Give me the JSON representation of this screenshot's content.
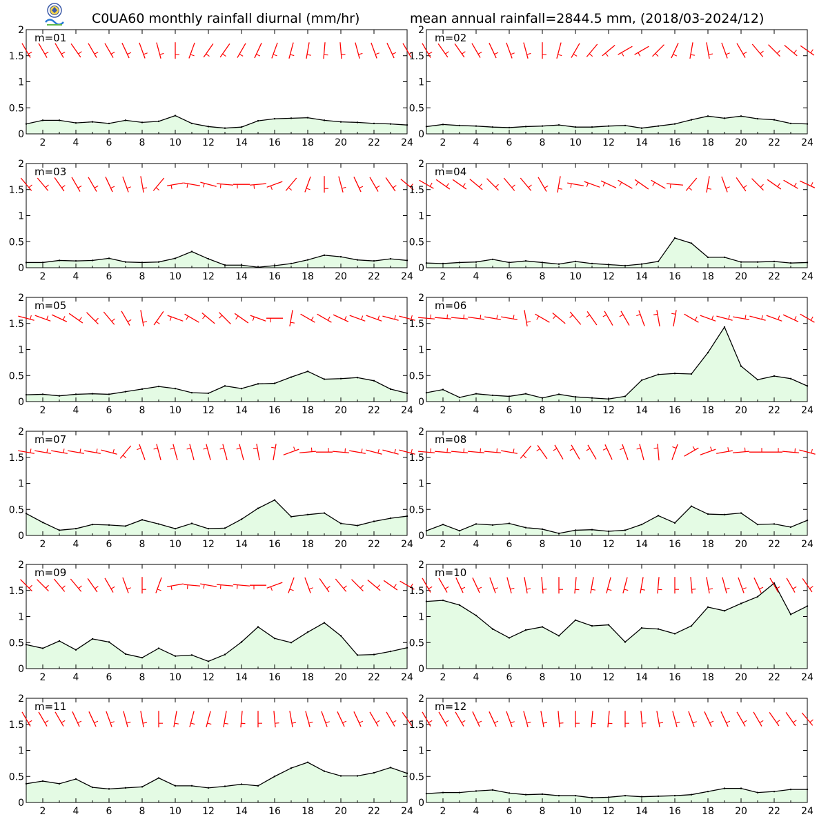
{
  "header": {
    "title_left": "C0UA60 monthly rainfall diurnal (mm/hr)",
    "title_right": "mean annual rainfall=2844.5 mm, (2018/03-2024/12)"
  },
  "colors": {
    "line": "#000000",
    "fill": "#e4fbe4",
    "wind": "#ff0000"
  },
  "chart_data": [
    {
      "type": "area",
      "title": "m=01",
      "x": [
        1,
        2,
        3,
        4,
        5,
        6,
        7,
        8,
        9,
        10,
        11,
        12,
        13,
        14,
        15,
        16,
        17,
        18,
        19,
        20,
        21,
        22,
        23,
        24
      ],
      "xticks": [
        2,
        4,
        6,
        8,
        10,
        12,
        14,
        16,
        18,
        20,
        22,
        24
      ],
      "ylim": [
        0,
        2
      ],
      "yticks": [
        0,
        0.5,
        1,
        1.5,
        2
      ],
      "values": [
        0.19,
        0.26,
        0.26,
        0.21,
        0.23,
        0.2,
        0.26,
        0.22,
        0.24,
        0.35,
        0.2,
        0.14,
        0.11,
        0.13,
        0.25,
        0.29,
        0.3,
        0.31,
        0.26,
        0.23,
        0.22,
        0.2,
        0.19,
        0.17
      ],
      "wind_dir": [
        330,
        330,
        330,
        325,
        330,
        330,
        335,
        340,
        345,
        0,
        20,
        35,
        35,
        30,
        25,
        20,
        15,
        10,
        5,
        355,
        345,
        340,
        335,
        330
      ]
    },
    {
      "type": "area",
      "title": "m=02",
      "x": [
        1,
        2,
        3,
        4,
        5,
        6,
        7,
        8,
        9,
        10,
        11,
        12,
        13,
        14,
        15,
        16,
        17,
        18,
        19,
        20,
        21,
        22,
        23,
        24
      ],
      "xticks": [
        2,
        4,
        6,
        8,
        10,
        12,
        14,
        16,
        18,
        20,
        22,
        24
      ],
      "ylim": [
        0,
        2
      ],
      "yticks": [
        0,
        0.5,
        1,
        1.5,
        2
      ],
      "values": [
        0.14,
        0.18,
        0.16,
        0.15,
        0.13,
        0.12,
        0.14,
        0.15,
        0.17,
        0.13,
        0.13,
        0.15,
        0.16,
        0.11,
        0.15,
        0.19,
        0.27,
        0.34,
        0.3,
        0.34,
        0.29,
        0.27,
        0.2,
        0.19
      ],
      "wind_dir": [
        330,
        325,
        325,
        330,
        335,
        340,
        345,
        0,
        15,
        30,
        40,
        50,
        60,
        60,
        45,
        25,
        10,
        350,
        340,
        330,
        320,
        315,
        310,
        305
      ]
    },
    {
      "type": "area",
      "title": "m=03",
      "x": [
        1,
        2,
        3,
        4,
        5,
        6,
        7,
        8,
        9,
        10,
        11,
        12,
        13,
        14,
        15,
        16,
        17,
        18,
        19,
        20,
        21,
        22,
        23,
        24
      ],
      "xticks": [
        2,
        4,
        6,
        8,
        10,
        12,
        14,
        16,
        18,
        20,
        22,
        24
      ],
      "ylim": [
        0,
        2
      ],
      "yticks": [
        0,
        0.5,
        1,
        1.5,
        2
      ],
      "values": [
        0.1,
        0.1,
        0.14,
        0.13,
        0.14,
        0.18,
        0.11,
        0.1,
        0.11,
        0.18,
        0.31,
        0.17,
        0.05,
        0.05,
        0.01,
        0.04,
        0.08,
        0.15,
        0.24,
        0.21,
        0.15,
        0.13,
        0.17,
        0.14
      ],
      "wind_dir": [
        320,
        320,
        325,
        330,
        330,
        335,
        340,
        350,
        40,
        80,
        100,
        105,
        95,
        90,
        85,
        70,
        40,
        20,
        0,
        345,
        335,
        330,
        325,
        310
      ]
    },
    {
      "type": "area",
      "title": "m=04",
      "x": [
        1,
        2,
        3,
        4,
        5,
        6,
        7,
        8,
        9,
        10,
        11,
        12,
        13,
        14,
        15,
        16,
        17,
        18,
        19,
        20,
        21,
        22,
        23,
        24
      ],
      "xticks": [
        2,
        4,
        6,
        8,
        10,
        12,
        14,
        16,
        18,
        20,
        22,
        24
      ],
      "ylim": [
        0,
        2
      ],
      "yticks": [
        0,
        0.5,
        1,
        1.5,
        2
      ],
      "values": [
        0.09,
        0.08,
        0.1,
        0.11,
        0.16,
        0.1,
        0.13,
        0.1,
        0.07,
        0.12,
        0.08,
        0.06,
        0.04,
        0.07,
        0.12,
        0.57,
        0.47,
        0.2,
        0.2,
        0.11,
        0.11,
        0.12,
        0.09,
        0.1
      ],
      "wind_dir": [
        300,
        305,
        305,
        310,
        315,
        320,
        320,
        330,
        10,
        100,
        110,
        115,
        120,
        125,
        120,
        95,
        40,
        10,
        340,
        325,
        315,
        305,
        300,
        295
      ]
    },
    {
      "type": "area",
      "title": "m=05",
      "x": [
        1,
        2,
        3,
        4,
        5,
        6,
        7,
        8,
        9,
        10,
        11,
        12,
        13,
        14,
        15,
        16,
        17,
        18,
        19,
        20,
        21,
        22,
        23,
        24
      ],
      "xticks": [
        2,
        4,
        6,
        8,
        10,
        12,
        14,
        16,
        18,
        20,
        22,
        24
      ],
      "ylim": [
        0,
        2
      ],
      "yticks": [
        0,
        0.5,
        1,
        1.5,
        2
      ],
      "values": [
        0.13,
        0.14,
        0.11,
        0.14,
        0.15,
        0.14,
        0.19,
        0.24,
        0.29,
        0.25,
        0.17,
        0.16,
        0.3,
        0.25,
        0.34,
        0.35,
        0.47,
        0.58,
        0.43,
        0.44,
        0.46,
        0.4,
        0.24,
        0.16
      ],
      "wind_dir": [
        285,
        290,
        295,
        305,
        315,
        320,
        330,
        350,
        35,
        110,
        120,
        130,
        135,
        125,
        110,
        90,
        10,
        300,
        300,
        295,
        290,
        290,
        285,
        285
      ]
    },
    {
      "type": "area",
      "title": "m=06",
      "x": [
        1,
        2,
        3,
        4,
        5,
        6,
        7,
        8,
        9,
        10,
        11,
        12,
        13,
        14,
        15,
        16,
        17,
        18,
        19,
        20,
        21,
        22,
        23,
        24
      ],
      "xticks": [
        2,
        4,
        6,
        8,
        10,
        12,
        14,
        16,
        18,
        20,
        22,
        24
      ],
      "ylim": [
        0,
        2
      ],
      "yticks": [
        0,
        0.5,
        1,
        1.5,
        2
      ],
      "values": [
        0.17,
        0.23,
        0.08,
        0.15,
        0.12,
        0.1,
        0.15,
        0.07,
        0.14,
        0.09,
        0.07,
        0.05,
        0.1,
        0.41,
        0.52,
        0.54,
        0.53,
        0.94,
        1.43,
        0.68,
        0.42,
        0.49,
        0.44,
        0.3
      ],
      "wind_dir": [
        275,
        275,
        275,
        278,
        280,
        280,
        350,
        120,
        130,
        140,
        145,
        150,
        150,
        160,
        170,
        190,
        300,
        290,
        285,
        280,
        285,
        290,
        295,
        300
      ]
    },
    {
      "type": "area",
      "title": "m=07",
      "x": [
        1,
        2,
        3,
        4,
        5,
        6,
        7,
        8,
        9,
        10,
        11,
        12,
        13,
        14,
        15,
        16,
        17,
        18,
        19,
        20,
        21,
        22,
        23,
        24
      ],
      "xticks": [
        2,
        4,
        6,
        8,
        10,
        12,
        14,
        16,
        18,
        20,
        22,
        24
      ],
      "ylim": [
        0,
        2
      ],
      "yticks": [
        0,
        0.5,
        1,
        1.5,
        2
      ],
      "values": [
        0.42,
        0.25,
        0.1,
        0.13,
        0.21,
        0.2,
        0.18,
        0.3,
        0.22,
        0.13,
        0.23,
        0.13,
        0.14,
        0.31,
        0.52,
        0.68,
        0.36,
        0.4,
        0.43,
        0.23,
        0.19,
        0.27,
        0.33,
        0.37
      ],
      "wind_dir": [
        280,
        280,
        280,
        280,
        280,
        285,
        40,
        160,
        165,
        165,
        165,
        165,
        165,
        165,
        170,
        190,
        250,
        265,
        270,
        275,
        280,
        285,
        285,
        285
      ]
    },
    {
      "type": "area",
      "title": "m=08",
      "x": [
        1,
        2,
        3,
        4,
        5,
        6,
        7,
        8,
        9,
        10,
        11,
        12,
        13,
        14,
        15,
        16,
        17,
        18,
        19,
        20,
        21,
        22,
        23,
        24
      ],
      "xticks": [
        2,
        4,
        6,
        8,
        10,
        12,
        14,
        16,
        18,
        20,
        22,
        24
      ],
      "ylim": [
        0,
        2
      ],
      "yticks": [
        0,
        0.5,
        1,
        1.5,
        2
      ],
      "values": [
        0.09,
        0.21,
        0.09,
        0.22,
        0.2,
        0.23,
        0.15,
        0.12,
        0.04,
        0.1,
        0.11,
        0.08,
        0.1,
        0.21,
        0.38,
        0.24,
        0.56,
        0.41,
        0.4,
        0.43,
        0.21,
        0.22,
        0.16,
        0.29
      ],
      "wind_dir": [
        275,
        275,
        275,
        275,
        275,
        280,
        40,
        145,
        150,
        150,
        150,
        155,
        160,
        165,
        175,
        200,
        240,
        250,
        260,
        265,
        270,
        270,
        275,
        285
      ]
    },
    {
      "type": "area",
      "title": "m=09",
      "x": [
        1,
        2,
        3,
        4,
        5,
        6,
        7,
        8,
        9,
        10,
        11,
        12,
        13,
        14,
        15,
        16,
        17,
        18,
        19,
        20,
        21,
        22,
        23,
        24
      ],
      "xticks": [
        2,
        4,
        6,
        8,
        10,
        12,
        14,
        16,
        18,
        20,
        22,
        24
      ],
      "ylim": [
        0,
        2
      ],
      "yticks": [
        0,
        0.5,
        1,
        1.5,
        2
      ],
      "values": [
        0.46,
        0.39,
        0.53,
        0.36,
        0.57,
        0.51,
        0.28,
        0.21,
        0.39,
        0.24,
        0.26,
        0.14,
        0.27,
        0.51,
        0.8,
        0.58,
        0.5,
        0.7,
        0.88,
        0.63,
        0.26,
        0.27,
        0.33,
        0.4
      ],
      "wind_dir": [
        315,
        315,
        320,
        320,
        325,
        330,
        340,
        0,
        20,
        80,
        95,
        100,
        95,
        95,
        90,
        70,
        20,
        340,
        325,
        320,
        315,
        310,
        305,
        300
      ]
    },
    {
      "type": "area",
      "title": "m=10",
      "x": [
        1,
        2,
        3,
        4,
        5,
        6,
        7,
        8,
        9,
        10,
        11,
        12,
        13,
        14,
        15,
        16,
        17,
        18,
        19,
        20,
        21,
        22,
        23,
        24
      ],
      "xticks": [
        2,
        4,
        6,
        8,
        10,
        12,
        14,
        16,
        18,
        20,
        22,
        24
      ],
      "ylim": [
        0,
        2
      ],
      "yticks": [
        0,
        0.5,
        1,
        1.5,
        2
      ],
      "values": [
        1.29,
        1.31,
        1.22,
        1.02,
        0.76,
        0.59,
        0.74,
        0.8,
        0.63,
        0.93,
        0.82,
        0.84,
        0.51,
        0.78,
        0.76,
        0.67,
        0.82,
        1.18,
        1.11,
        1.25,
        1.38,
        1.64,
        1.04,
        1.2
      ],
      "wind_dir": [
        330,
        330,
        335,
        335,
        340,
        345,
        350,
        355,
        0,
        5,
        10,
        15,
        15,
        10,
        5,
        0,
        355,
        350,
        345,
        340,
        335,
        330,
        330,
        325
      ]
    },
    {
      "type": "area",
      "title": "m=11",
      "x": [
        1,
        2,
        3,
        4,
        5,
        6,
        7,
        8,
        9,
        10,
        11,
        12,
        13,
        14,
        15,
        16,
        17,
        18,
        19,
        20,
        21,
        22,
        23,
        24
      ],
      "xticks": [
        2,
        4,
        6,
        8,
        10,
        12,
        14,
        16,
        18,
        20,
        22,
        24
      ],
      "ylim": [
        0,
        2
      ],
      "yticks": [
        0,
        0.5,
        1,
        1.5,
        2
      ],
      "values": [
        0.36,
        0.41,
        0.36,
        0.45,
        0.29,
        0.26,
        0.28,
        0.3,
        0.47,
        0.32,
        0.32,
        0.28,
        0.31,
        0.35,
        0.32,
        0.5,
        0.66,
        0.77,
        0.6,
        0.51,
        0.51,
        0.57,
        0.67,
        0.56
      ],
      "wind_dir": [
        330,
        330,
        330,
        335,
        335,
        340,
        345,
        350,
        0,
        10,
        15,
        15,
        10,
        5,
        0,
        355,
        350,
        345,
        340,
        335,
        335,
        330,
        330,
        325
      ]
    },
    {
      "type": "area",
      "title": "m=12",
      "x": [
        1,
        2,
        3,
        4,
        5,
        6,
        7,
        8,
        9,
        10,
        11,
        12,
        13,
        14,
        15,
        16,
        17,
        18,
        19,
        20,
        21,
        22,
        23,
        24
      ],
      "xticks": [
        2,
        4,
        6,
        8,
        10,
        12,
        14,
        16,
        18,
        20,
        22,
        24
      ],
      "ylim": [
        0,
        2
      ],
      "yticks": [
        0,
        0.5,
        1,
        1.5,
        2
      ],
      "values": [
        0.17,
        0.19,
        0.19,
        0.22,
        0.24,
        0.18,
        0.15,
        0.16,
        0.13,
        0.13,
        0.09,
        0.1,
        0.13,
        0.11,
        0.12,
        0.13,
        0.15,
        0.21,
        0.27,
        0.27,
        0.19,
        0.21,
        0.25,
        0.25
      ],
      "wind_dir": [
        330,
        330,
        330,
        335,
        335,
        340,
        345,
        350,
        355,
        0,
        5,
        5,
        0,
        355,
        350,
        345,
        340,
        335,
        335,
        330,
        330,
        325,
        325,
        320
      ]
    }
  ]
}
